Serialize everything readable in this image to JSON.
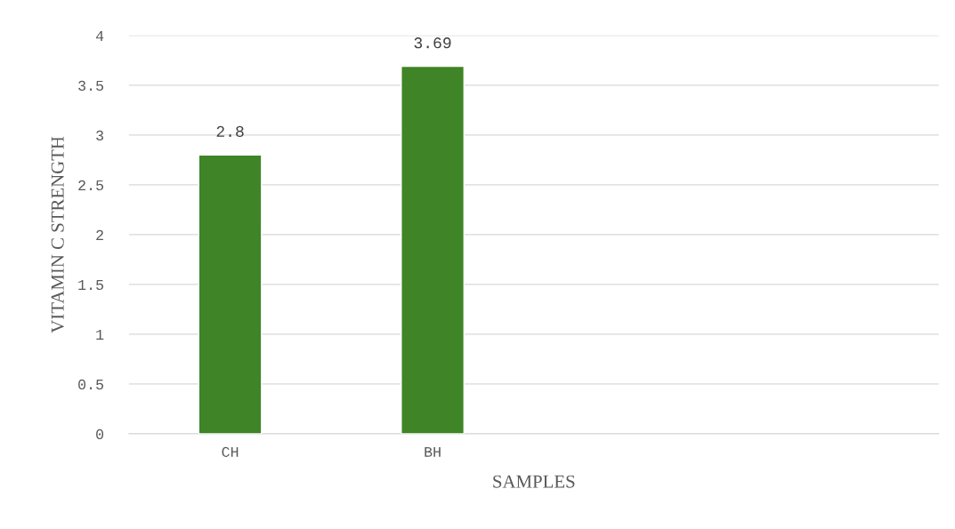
{
  "chart_data": {
    "type": "bar",
    "xlabel": "SAMPLES",
    "ylabel": "VITAMIN C STRENGTH",
    "categories": [
      "CH",
      "BH",
      null,
      null
    ],
    "values": [
      2.8,
      3.69,
      null,
      null
    ],
    "color": "#3f8426",
    "ylim": [
      0,
      4
    ],
    "yticks": [
      0,
      0.5,
      1,
      1.5,
      2,
      2.5,
      3,
      3.5,
      4
    ],
    "grid": "y",
    "data_labels": true,
    "legend": false
  }
}
